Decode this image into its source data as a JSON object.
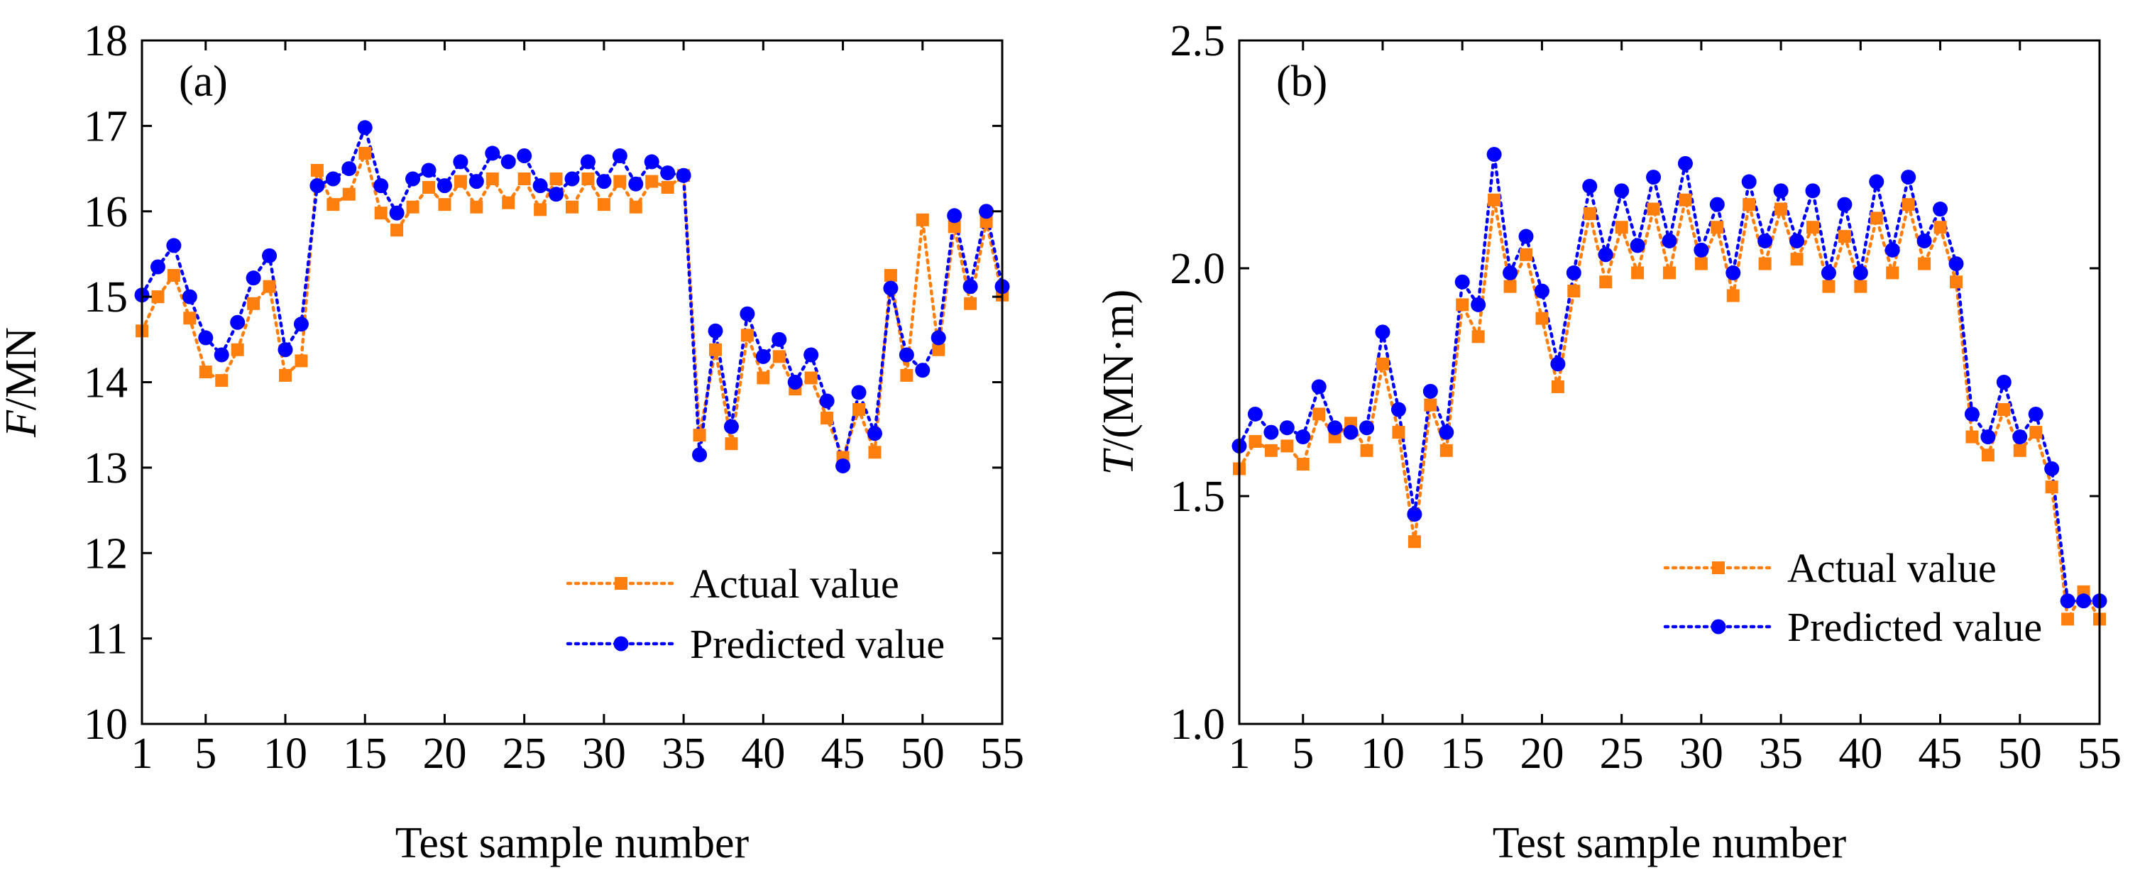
{
  "colors": {
    "actual": "#ff7f0e",
    "predicted": "#0000ff"
  },
  "chart_data": [
    {
      "type": "line",
      "panel_label": "(a)",
      "xlabel": "Test sample number",
      "ylabel_italic": "F",
      "ylabel_rest": "/MN",
      "xlim": [
        1,
        55
      ],
      "ylim": [
        10,
        18
      ],
      "xticks": [
        1,
        5,
        10,
        15,
        20,
        25,
        30,
        35,
        40,
        45,
        50,
        55
      ],
      "yticks": [
        10,
        11,
        12,
        13,
        14,
        15,
        16,
        17,
        18
      ],
      "legend_position": "lower-right",
      "series": [
        {
          "name": "Actual value",
          "marker": "square",
          "values": [
            14.6,
            15.0,
            15.25,
            14.75,
            14.12,
            14.02,
            14.38,
            14.92,
            15.12,
            14.08,
            14.25,
            16.48,
            16.08,
            16.2,
            16.68,
            15.98,
            15.78,
            16.05,
            16.28,
            16.08,
            16.35,
            16.05,
            16.38,
            16.1,
            16.38,
            16.02,
            16.38,
            16.05,
            16.38,
            16.08,
            16.35,
            16.05,
            16.35,
            16.28,
            16.42,
            13.38,
            14.38,
            13.28,
            14.55,
            14.05,
            14.3,
            13.92,
            14.05,
            13.58,
            13.12,
            13.68,
            13.18,
            15.25,
            14.08,
            15.9,
            14.38,
            15.82,
            14.92,
            15.88,
            15.02
          ]
        },
        {
          "name": "Predicted value",
          "marker": "circle",
          "values": [
            15.02,
            15.35,
            15.6,
            15.0,
            14.52,
            14.32,
            14.7,
            15.22,
            15.48,
            14.38,
            14.68,
            16.3,
            16.38,
            16.5,
            16.98,
            16.3,
            15.98,
            16.38,
            16.48,
            16.3,
            16.58,
            16.35,
            16.68,
            16.58,
            16.65,
            16.3,
            16.2,
            16.38,
            16.58,
            16.35,
            16.65,
            16.32,
            16.58,
            16.45,
            16.42,
            13.15,
            14.6,
            13.48,
            14.8,
            14.3,
            14.5,
            14.0,
            14.32,
            13.78,
            13.02,
            13.88,
            13.4,
            15.1,
            14.32,
            14.14,
            14.52,
            15.95,
            15.12,
            16.0,
            15.12
          ]
        }
      ]
    },
    {
      "type": "line",
      "panel_label": "(b)",
      "xlabel": "Test sample number",
      "ylabel_italic": "T",
      "ylabel_rest": "/(MN·m)",
      "xlim": [
        1,
        55
      ],
      "ylim": [
        1.0,
        2.5
      ],
      "xticks": [
        1,
        5,
        10,
        15,
        20,
        25,
        30,
        35,
        40,
        45,
        50,
        55
      ],
      "yticks": [
        1.0,
        1.5,
        2.0,
        2.5
      ],
      "ytick_labels": [
        "1.0",
        "1.5",
        "2.0",
        "2.5"
      ],
      "legend_position": "lower-right",
      "series": [
        {
          "name": "Actual value",
          "marker": "square",
          "values": [
            1.56,
            1.62,
            1.6,
            1.61,
            1.57,
            1.68,
            1.63,
            1.66,
            1.6,
            1.79,
            1.64,
            1.4,
            1.7,
            1.6,
            1.92,
            1.85,
            2.15,
            1.96,
            2.03,
            1.89,
            1.74,
            1.95,
            2.12,
            1.97,
            2.09,
            1.99,
            2.13,
            1.99,
            2.15,
            2.01,
            2.09,
            1.94,
            2.14,
            2.01,
            2.13,
            2.02,
            2.09,
            1.96,
            2.07,
            1.96,
            2.11,
            1.99,
            2.14,
            2.01,
            2.09,
            1.97,
            1.63,
            1.59,
            1.69,
            1.6,
            1.64,
            1.52,
            1.23,
            1.29,
            1.23
          ]
        },
        {
          "name": "Predicted value",
          "marker": "circle",
          "values": [
            1.61,
            1.68,
            1.64,
            1.65,
            1.63,
            1.74,
            1.65,
            1.64,
            1.65,
            1.86,
            1.69,
            1.46,
            1.73,
            1.64,
            1.97,
            1.92,
            2.25,
            1.99,
            2.07,
            1.95,
            1.79,
            1.99,
            2.18,
            2.03,
            2.17,
            2.05,
            2.2,
            2.06,
            2.23,
            2.04,
            2.14,
            1.99,
            2.19,
            2.06,
            2.17,
            2.06,
            2.17,
            1.99,
            2.14,
            1.99,
            2.19,
            2.04,
            2.2,
            2.06,
            2.13,
            2.01,
            1.68,
            1.63,
            1.75,
            1.63,
            1.68,
            1.56,
            1.27,
            1.27,
            1.27
          ]
        }
      ]
    }
  ]
}
